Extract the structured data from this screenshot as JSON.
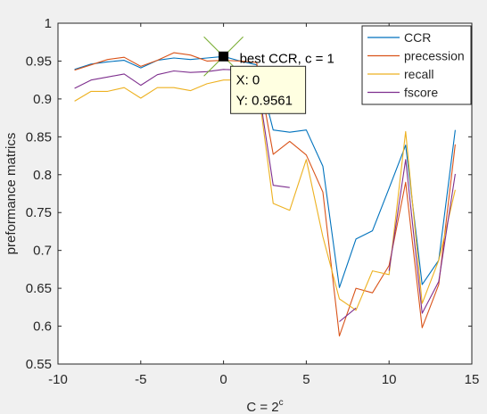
{
  "chart_data": {
    "type": "line",
    "xlabel": "C = 2",
    "xlabel_superscript": "c",
    "ylabel": "preformance matrics",
    "xlim": [
      -10,
      15
    ],
    "ylim": [
      0.55,
      1
    ],
    "xticks": [
      -10,
      -5,
      0,
      5,
      10,
      15
    ],
    "yticks": [
      0.55,
      0.6,
      0.65,
      0.7,
      0.75,
      0.8,
      0.85,
      0.9,
      0.95,
      1
    ],
    "grid": false,
    "legend": {
      "position": "top-right",
      "entries": [
        "CCR",
        "precession",
        "recall",
        "fscore"
      ]
    },
    "series": [
      {
        "name": "CCR",
        "color": "#0072bd",
        "x": [
          -9,
          -8,
          -7,
          -6,
          -5,
          -4,
          -3,
          -2,
          -1,
          0,
          1,
          2,
          3,
          4,
          5,
          6,
          7,
          8,
          9,
          10,
          11,
          12,
          13,
          14
        ],
        "y": [
          0.939,
          0.946,
          0.949,
          0.951,
          0.941,
          0.951,
          0.954,
          0.952,
          0.954,
          0.9561,
          0.95,
          0.945,
          0.859,
          0.856,
          0.859,
          0.811,
          0.651,
          0.715,
          0.726,
          0.782,
          0.839,
          0.655,
          0.687,
          0.859
        ]
      },
      {
        "name": "precession",
        "color": "#d95319",
        "x": [
          -9,
          -8,
          -7,
          -6,
          -5,
          -4,
          -3,
          -2,
          -1,
          0,
          1,
          2,
          3,
          4,
          5,
          6,
          7,
          8,
          9,
          10,
          11,
          12,
          13,
          14
        ],
        "y": [
          0.938,
          0.945,
          0.952,
          0.955,
          0.943,
          0.951,
          0.961,
          0.958,
          0.95,
          0.951,
          0.95,
          0.948,
          0.827,
          0.844,
          0.826,
          0.777,
          0.587,
          0.65,
          0.644,
          0.68,
          0.79,
          0.598,
          0.655,
          0.84
        ]
      },
      {
        "name": "recall",
        "color": "#edb120",
        "x": [
          -9,
          -8,
          -7,
          -6,
          -5,
          -4,
          -3,
          -2,
          -1,
          0,
          1,
          2,
          3,
          4,
          5,
          6,
          7,
          8,
          9,
          10,
          11,
          12,
          13,
          14
        ],
        "y": [
          0.897,
          0.91,
          0.91,
          0.915,
          0.901,
          0.915,
          0.915,
          0.911,
          0.92,
          0.925,
          0.925,
          0.93,
          0.762,
          0.753,
          0.82,
          0.718,
          0.636,
          0.621,
          0.673,
          0.668,
          0.857,
          0.63,
          0.687,
          0.78
        ]
      },
      {
        "name": "fscore",
        "color": "#7e2f8e",
        "x": [
          -9,
          -8,
          -7,
          -6,
          -5,
          -4,
          -3,
          -2,
          -1,
          0,
          1,
          2,
          3,
          4,
          5,
          6,
          7,
          8,
          9,
          10,
          11,
          12,
          13,
          14
        ],
        "y": [
          0.914,
          0.925,
          0.929,
          0.933,
          0.918,
          0.932,
          0.937,
          0.935,
          0.936,
          0.939,
          0.938,
          0.932,
          0.786,
          0.783,
          null,
          null,
          0.606,
          0.624,
          null,
          0.673,
          0.82,
          0.617,
          0.659,
          0.801
        ]
      }
    ],
    "datatip": {
      "series": "CCR",
      "x": 0,
      "y": 0.9561,
      "label": "best CCR, c = 1",
      "x_text": "X: 0",
      "y_text": "Y: 0.9561"
    }
  }
}
